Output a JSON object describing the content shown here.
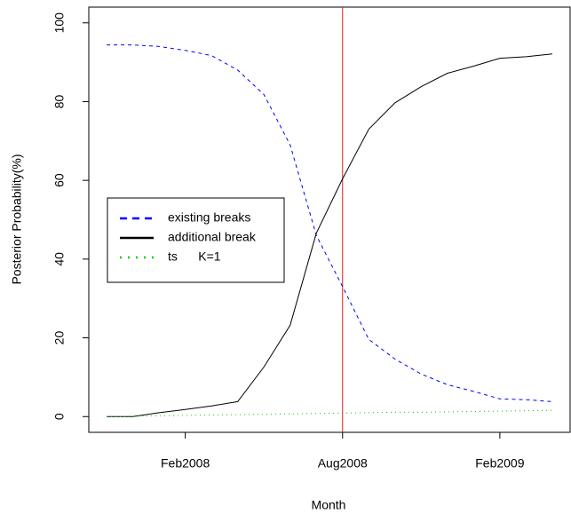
{
  "chart_data": {
    "type": "line",
    "x_label": "Month",
    "y_label": "Posterior Probability(%)",
    "x": [
      "2007-11",
      "2007-12",
      "2008-01",
      "2008-02",
      "2008-03",
      "2008-04",
      "2008-05",
      "2008-06",
      "2008-07",
      "2008-08",
      "2008-09",
      "2008-10",
      "2008-11",
      "2008-12",
      "2009-01",
      "2009-02",
      "2009-03",
      "2009-04"
    ],
    "series": [
      {
        "name": "existing breaks",
        "color": "#0000ff",
        "dash": "dashed",
        "values": [
          94.4,
          94.4,
          94.0,
          93.0,
          91.7,
          88.0,
          81.8,
          69.0,
          46.0,
          33.0,
          19.6,
          14.6,
          10.8,
          8.1,
          6.4,
          4.5,
          4.3,
          3.8
        ]
      },
      {
        "name": "additional break",
        "color": "#000000",
        "dash": "solid",
        "values": [
          0.0,
          0.0,
          1.0,
          1.8,
          2.7,
          3.8,
          12.6,
          23.2,
          46.6,
          60.4,
          73.0,
          79.7,
          83.8,
          87.2,
          89.0,
          91.0,
          91.4,
          92.1
        ]
      },
      {
        "name": "ts      K=1",
        "color": "#00cc00",
        "dash": "dotted",
        "values": [
          0.0,
          0.1,
          0.2,
          0.3,
          0.4,
          0.5,
          0.6,
          0.7,
          0.8,
          0.9,
          1.0,
          1.1,
          1.1,
          1.2,
          1.3,
          1.4,
          1.5,
          1.6
        ]
      }
    ],
    "vline": {
      "x": "2008-08",
      "color": "#e41a1c"
    },
    "xlim": [
      "2007-11",
      "2009-04"
    ],
    "xticks": [
      {
        "value": "2008-02",
        "label": "Feb2008"
      },
      {
        "value": "2008-08",
        "label": "Aug2008"
      },
      {
        "value": "2009-02",
        "label": "Feb2009"
      }
    ],
    "ylim": [
      -4,
      104
    ],
    "yticks": [
      0,
      20,
      40,
      60,
      80,
      100
    ],
    "legend": "left"
  }
}
